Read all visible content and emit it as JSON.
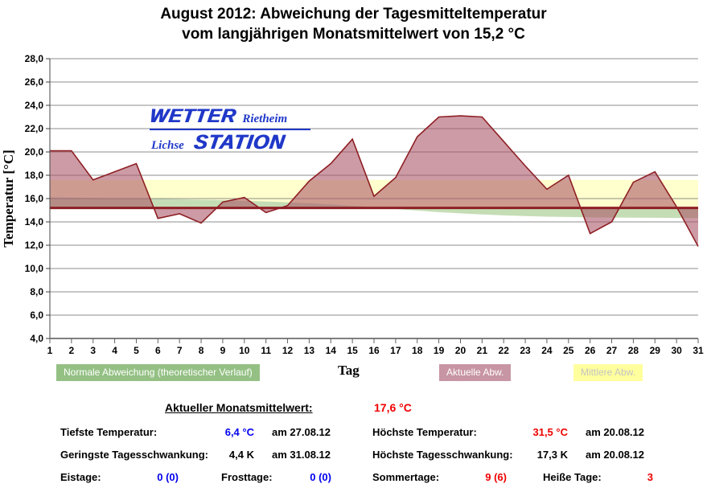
{
  "title_line1": "August 2012: Abweichung der Tagesmitteltemperatur",
  "title_line2": "vom langjährigen Monatsmittelwert von 15,2 °C",
  "logo": {
    "line1_main": "WETTER",
    "line1_side": "Rietheim",
    "line2_side": "Lichse",
    "line2_main": "STATION"
  },
  "colors": {
    "value_blue": "#0000ee",
    "value_red": "#ee0000",
    "logo_blue": "#2038c8",
    "line_dark_red": "#8e1f24",
    "band_yellow": "#ffffcd",
    "band_green": "#c5ddb5",
    "fill_pink": "#a85264",
    "grid_gray": "#8c8c8c",
    "chip_green": "#94c084",
    "chip_pink": "#c795a3",
    "chip_yellow": "#ffff9e",
    "chip_yellow_text": "#c4c4c4"
  },
  "chart_data": {
    "type": "area",
    "title": "August 2012: Abweichung der Tagesmitteltemperatur vom langjährigen Monatsmittelwert von 15,2 °C",
    "xlabel": "Tag",
    "ylabel": "Temperatur [°C]",
    "xlim": [
      1,
      31
    ],
    "ylim": [
      4.0,
      28.0
    ],
    "ytick_step": 2,
    "grid": true,
    "baseline_mean": 15.2,
    "days": [
      1,
      2,
      3,
      4,
      5,
      6,
      7,
      8,
      9,
      10,
      11,
      12,
      13,
      14,
      15,
      16,
      17,
      18,
      19,
      20,
      21,
      22,
      23,
      24,
      25,
      26,
      27,
      28,
      29,
      30,
      31
    ],
    "series": [
      {
        "name": "Aktuelle Abw.",
        "kind": "line_area_vs_baseline",
        "values": [
          20.1,
          20.1,
          17.6,
          18.3,
          19.0,
          14.3,
          14.7,
          13.9,
          15.7,
          16.1,
          14.8,
          15.4,
          17.5,
          19.0,
          21.1,
          16.2,
          17.8,
          21.3,
          23.0,
          23.1,
          23.0,
          20.9,
          18.8,
          16.8,
          18.0,
          13.0,
          14.0,
          17.4,
          18.3,
          15.3,
          11.9
        ]
      },
      {
        "name": "Normale Abweichung (theoretischer Verlauf)",
        "kind": "area_vs_baseline",
        "values": [
          16.1,
          16.08,
          16.05,
          16.03,
          16.0,
          15.97,
          15.94,
          15.9,
          15.86,
          15.81,
          15.75,
          15.68,
          15.6,
          15.5,
          15.38,
          15.25,
          15.11,
          14.97,
          14.84,
          14.73,
          14.64,
          14.56,
          14.5,
          14.45,
          14.42,
          14.39,
          14.37,
          14.36,
          14.35,
          14.34,
          14.33
        ]
      },
      {
        "name": "Mittlere Abw.",
        "kind": "band",
        "from": 15.2,
        "to": 17.6
      }
    ]
  },
  "legend": {
    "normal_label": "Normale Abweichung (theoretischer Verlauf)",
    "x_axis_label": "Tag",
    "aktuelle_label": "Aktuelle Abw.",
    "mittlere_label": "Mittlere Abw."
  },
  "stats": {
    "header_label": "Aktueller Monatsmittelwert:",
    "header_value": "17,6 °C",
    "tiefste_label": "Tiefste Temperatur:",
    "tiefste_value": "6,4 °C",
    "tiefste_date": "am 27.08.12",
    "hoechste_label": "Höchste Temperatur:",
    "hoechste_value": "31,5 °C",
    "hoechste_date": "am 20.08.12",
    "geringste_label": "Geringste Tagesschwankung:",
    "geringste_value": "4,4 K",
    "geringste_date": "am 31.08.12",
    "hoechste_schw_label": "Höchste Tagesschwankung:",
    "hoechste_schw_value": "17,3 K",
    "hoechste_schw_date": "am 20.08.12",
    "eistage_label": "Eistage:",
    "eistage_value": "0 (0)",
    "frosttage_label": "Frosttage:",
    "frosttage_value": "0 (0)",
    "sommertage_label": "Sommertage:",
    "sommertage_value": "9 (6)",
    "heisse_label": "Heiße Tage:",
    "heisse_value": "3"
  }
}
